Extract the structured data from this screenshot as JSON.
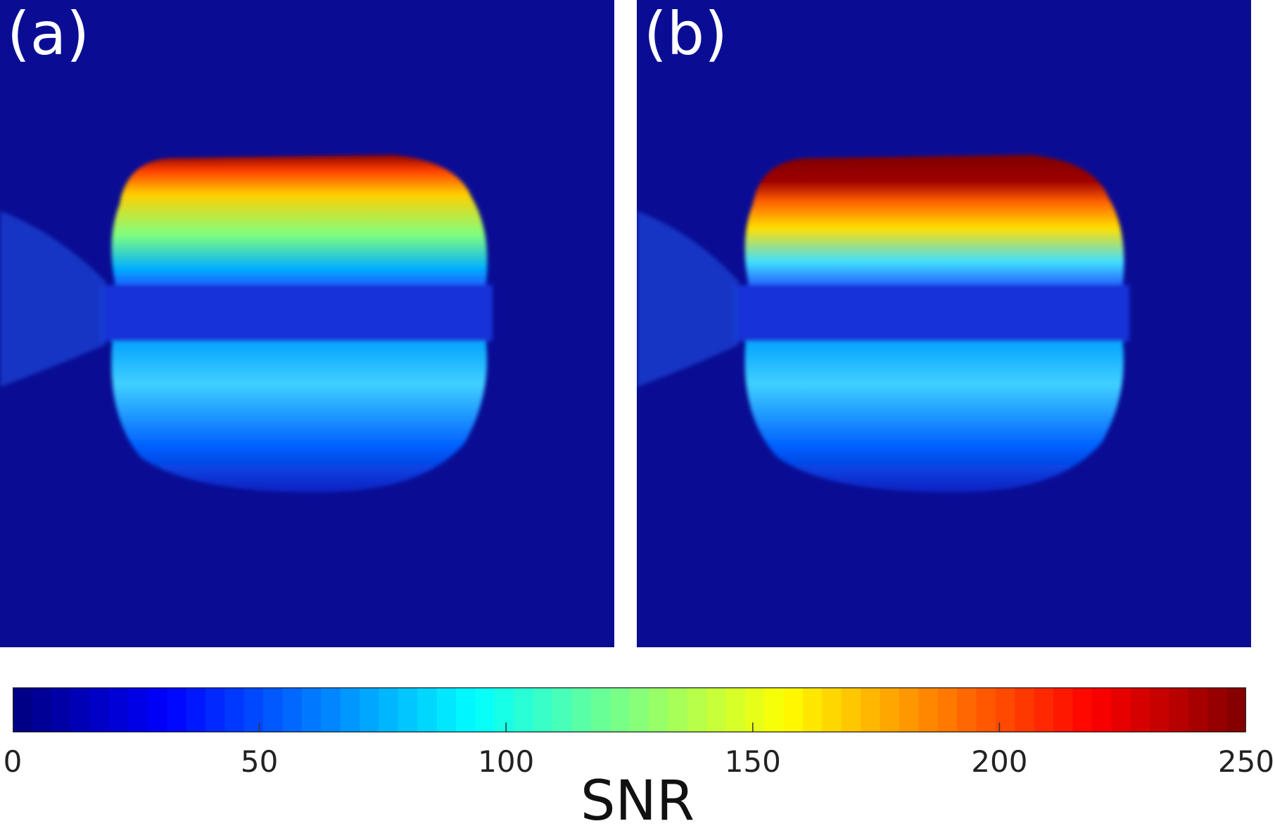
{
  "panels": [
    {
      "label": "(a)"
    },
    {
      "label": "(b)"
    }
  ],
  "colorbar": {
    "label": "SNR",
    "range": [
      0,
      250
    ],
    "ticks": [
      "0",
      "50",
      "100",
      "150",
      "200",
      "250"
    ],
    "colormap": "jet"
  }
}
